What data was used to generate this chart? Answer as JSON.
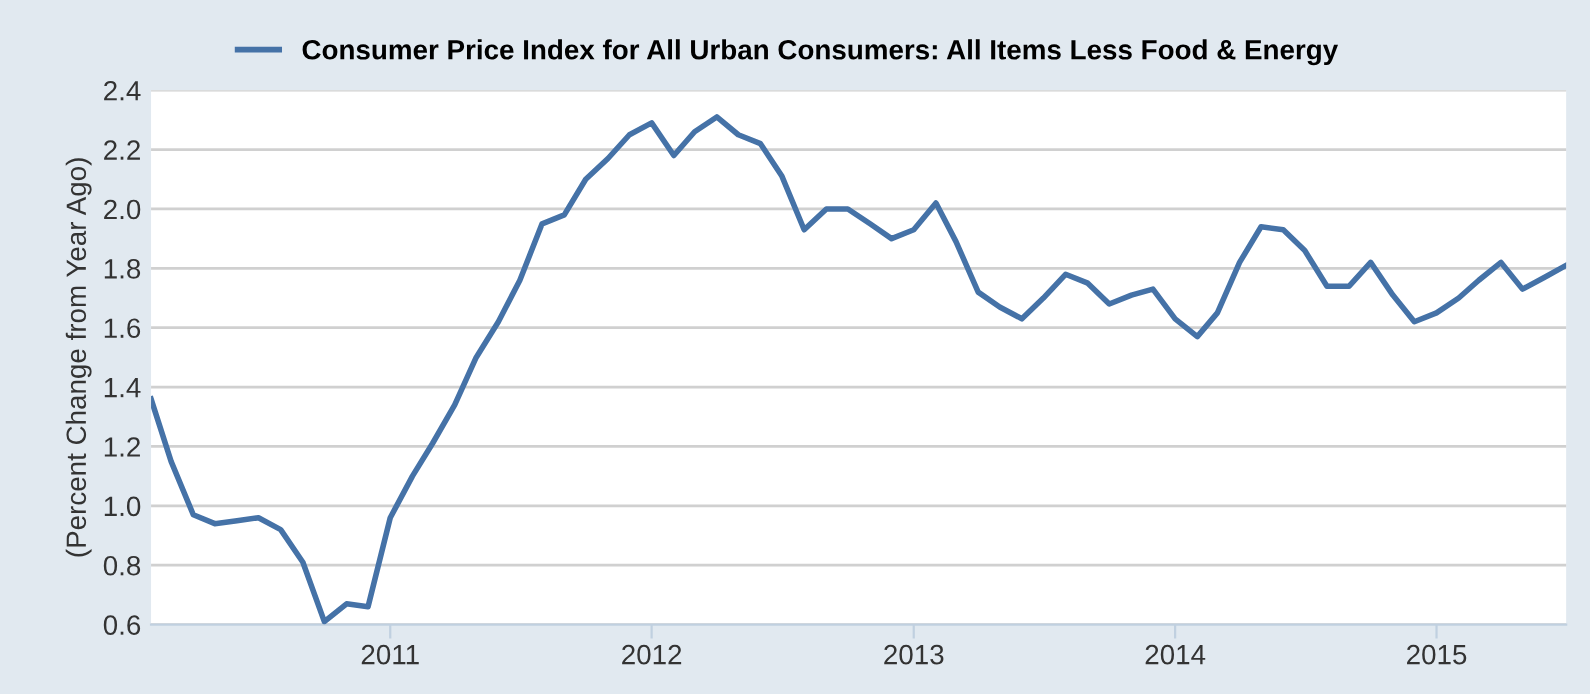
{
  "chart_data": {
    "type": "line",
    "ylabel": "(Percent Change from Year Ago)",
    "x": [
      "2010-02",
      "2010-03",
      "2010-04",
      "2010-05",
      "2010-06",
      "2010-07",
      "2010-08",
      "2010-09",
      "2010-10",
      "2010-11",
      "2010-12",
      "2011-01",
      "2011-02",
      "2011-03",
      "2011-04",
      "2011-05",
      "2011-06",
      "2011-07",
      "2011-08",
      "2011-09",
      "2011-10",
      "2011-11",
      "2011-12",
      "2012-01",
      "2012-02",
      "2012-03",
      "2012-04",
      "2012-05",
      "2012-06",
      "2012-07",
      "2012-08",
      "2012-09",
      "2012-10",
      "2012-11",
      "2012-12",
      "2013-01",
      "2013-02",
      "2013-03",
      "2013-04",
      "2013-05",
      "2013-06",
      "2013-07",
      "2013-08",
      "2013-09",
      "2013-10",
      "2013-11",
      "2013-12",
      "2014-01",
      "2014-02",
      "2014-03",
      "2014-04",
      "2014-05",
      "2014-06",
      "2014-07",
      "2014-08",
      "2014-09",
      "2014-10",
      "2014-11",
      "2014-12",
      "2015-01",
      "2015-02",
      "2015-03",
      "2015-04",
      "2015-05",
      "2015-06",
      "2015-07"
    ],
    "series": [
      {
        "name": "Consumer Price Index for All Urban Consumers: All Items Less Food & Energy",
        "color": "#4572a7",
        "values": [
          1.36,
          1.15,
          0.97,
          0.94,
          0.95,
          0.96,
          0.92,
          0.81,
          0.61,
          0.67,
          0.66,
          0.96,
          1.1,
          1.21,
          1.34,
          1.5,
          1.62,
          1.76,
          1.95,
          1.98,
          2.1,
          2.17,
          2.25,
          2.29,
          2.18,
          2.26,
          2.31,
          2.25,
          2.22,
          2.11,
          1.93,
          2.0,
          2.0,
          1.95,
          1.9,
          1.93,
          2.02,
          1.89,
          1.72,
          1.67,
          1.63,
          1.7,
          1.78,
          1.75,
          1.68,
          1.71,
          1.73,
          1.63,
          1.57,
          1.65,
          1.82,
          1.94,
          1.93,
          1.86,
          1.74,
          1.74,
          1.82,
          1.71,
          1.62,
          1.65,
          1.7,
          1.76,
          1.82,
          1.73,
          1.77,
          1.81
        ]
      }
    ],
    "xlim": [
      "2010-02",
      "2015-07"
    ],
    "xticks": [
      {
        "value": "2011",
        "label": "2011"
      },
      {
        "value": "2012",
        "label": "2012"
      },
      {
        "value": "2013",
        "label": "2013"
      },
      {
        "value": "2014",
        "label": "2014"
      },
      {
        "value": "2015",
        "label": "2015"
      }
    ],
    "ylim": [
      0.6,
      2.4
    ],
    "yticks": [
      0.6,
      0.8,
      {
        "value": 1.0,
        "label": "1.0"
      },
      1.2,
      1.4,
      1.6,
      1.8,
      {
        "value": 2.0,
        "label": "2.0"
      },
      2.2,
      2.4
    ],
    "grid": "y",
    "legend": "top",
    "marker": "none",
    "line_style": "solid"
  }
}
